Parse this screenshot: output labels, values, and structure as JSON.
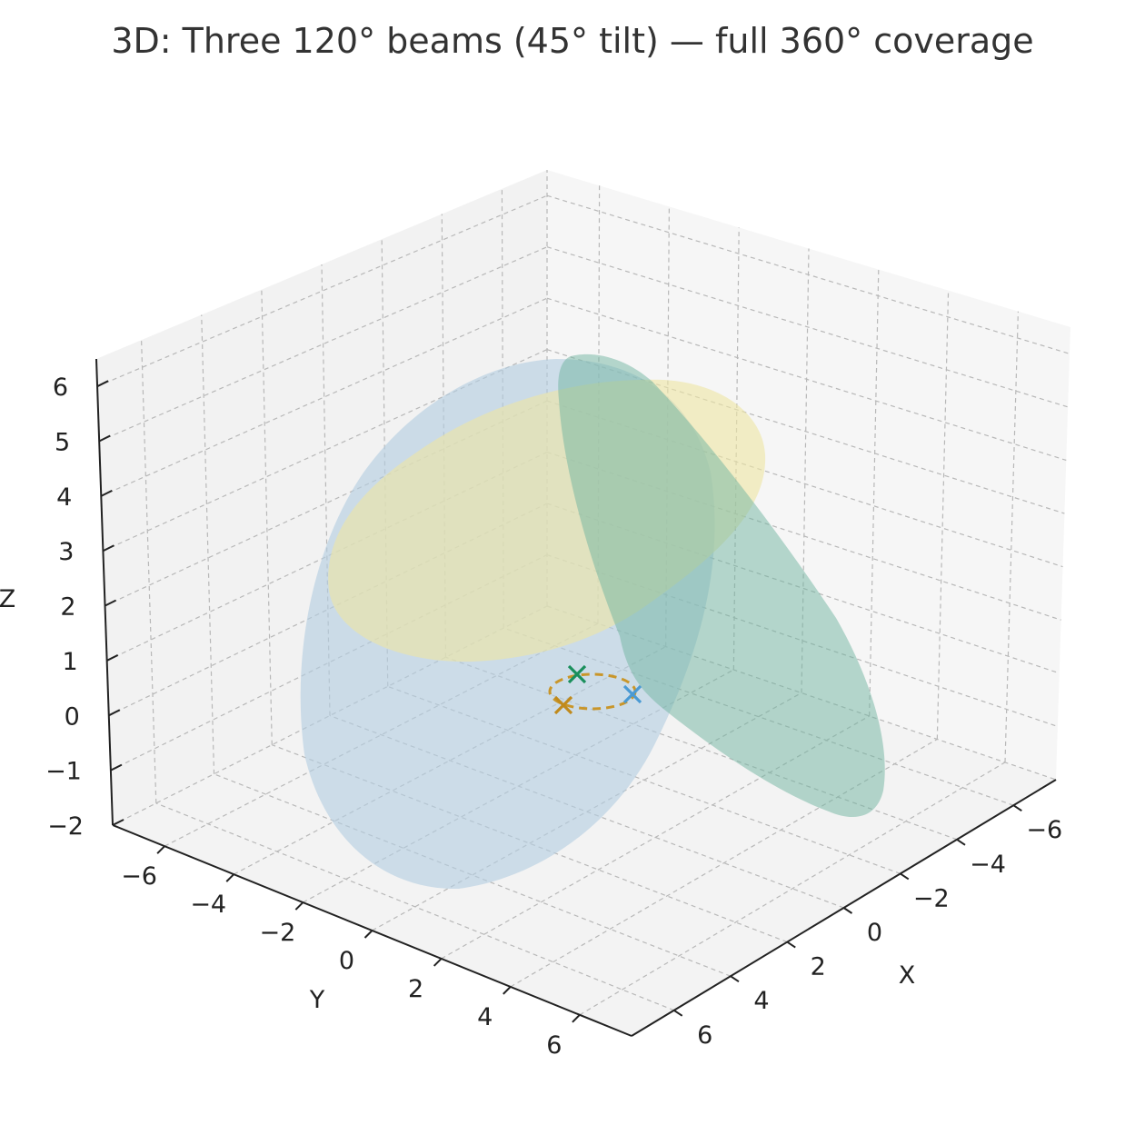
{
  "chart_data": {
    "type": "3d-surface",
    "title": "3D: Three 120° beams (45° tilt) — full 360° coverage",
    "xlabel": "X",
    "ylabel": "Y",
    "zlabel": "Z",
    "xlim": [
      -7.5,
      7.5
    ],
    "ylim": [
      -7.5,
      7.5
    ],
    "zlim": [
      -2,
      6.5
    ],
    "xticks": [
      "−6",
      "−4",
      "−2",
      "0",
      "2",
      "4",
      "6"
    ],
    "xtick_values": [
      -6,
      -4,
      -2,
      0,
      2,
      4,
      6
    ],
    "yticks": [
      "−6",
      "−4",
      "−2",
      "0",
      "2",
      "4",
      "6"
    ],
    "ytick_values": [
      -6,
      -4,
      -2,
      0,
      2,
      4,
      6
    ],
    "zticks": [
      "−2",
      "−1",
      "0",
      "1",
      "2",
      "3",
      "4",
      "5",
      "6"
    ],
    "ztick_values": [
      -2,
      -1,
      0,
      1,
      2,
      3,
      4,
      5,
      6
    ],
    "grid": true,
    "colors": {
      "beam_blue": "#b3cde0",
      "beam_yellow": "#ede5a4",
      "beam_green": "#6fb39f",
      "marker_green": "#1a8f5c",
      "marker_blue": "#4a9ad4",
      "marker_orange": "#c08a1c",
      "dashed_circle": "#c9962a"
    },
    "series": [
      {
        "color": "#b3cde0",
        "markers": [
          {
            "x": 0.6,
            "y": 0.4,
            "z": 0
          }
        ]
      },
      {
        "color": "#ede5a4",
        "markers": [
          {
            "x": -0.1,
            "y": -0.8,
            "z": 0
          }
        ]
      },
      {
        "color": "#6fb39f",
        "markers": [
          {
            "x": -0.6,
            "y": 0.4,
            "z": 0
          }
        ]
      }
    ]
  }
}
